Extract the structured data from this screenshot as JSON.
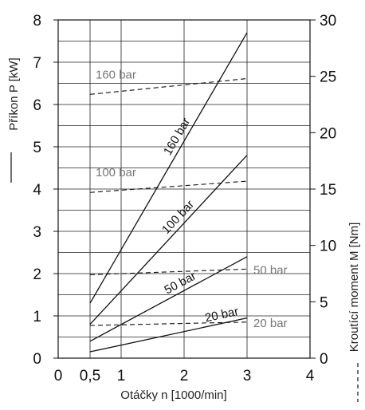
{
  "chart_data": {
    "type": "line",
    "xlabel": "Otáčky n [1000/min]",
    "ylabel_left": "Příkon P [kW]",
    "ylabel_right": "Kroutící moment M [Nm]",
    "x_ticks": [
      "0",
      "0,5",
      "1",
      "2",
      "3",
      "4"
    ],
    "x_tick_values": [
      0,
      0.5,
      1,
      2,
      3,
      4
    ],
    "y_left_ticks": [
      "0",
      "1",
      "2",
      "3",
      "4",
      "5",
      "6",
      "7",
      "8"
    ],
    "y_right_ticks": [
      "0",
      "5",
      "10",
      "15",
      "20",
      "25",
      "30"
    ],
    "xlim": [
      0,
      4
    ],
    "ylim_left": [
      0,
      8
    ],
    "ylim_right": [
      0,
      30
    ],
    "x_scale": "non-uniform (0 to 0.5 compressed)",
    "grid": true,
    "series_power": [
      {
        "name": "160 bar",
        "axis": "left",
        "style": "solid",
        "x": [
          0.5,
          3
        ],
        "y": [
          1.3,
          7.7
        ]
      },
      {
        "name": "100 bar",
        "axis": "left",
        "style": "solid",
        "x": [
          0.5,
          3
        ],
        "y": [
          0.8,
          4.8
        ]
      },
      {
        "name": "50 bar",
        "axis": "left",
        "style": "solid",
        "x": [
          0.5,
          3
        ],
        "y": [
          0.4,
          2.4
        ]
      },
      {
        "name": "20 bar",
        "axis": "left",
        "style": "solid",
        "x": [
          0.5,
          3
        ],
        "y": [
          0.15,
          0.95
        ]
      }
    ],
    "series_torque": [
      {
        "name": "160 bar",
        "axis": "right",
        "style": "dashed",
        "x": [
          0.5,
          3
        ],
        "y": [
          23.4,
          24.8
        ]
      },
      {
        "name": "100 bar",
        "axis": "right",
        "style": "dashed",
        "x": [
          0.5,
          3
        ],
        "y": [
          14.7,
          15.7
        ]
      },
      {
        "name": "50 bar",
        "axis": "right",
        "style": "dashed",
        "x": [
          0.5,
          3
        ],
        "y": [
          7.4,
          7.9
        ]
      },
      {
        "name": "20 bar",
        "axis": "right",
        "style": "dashed",
        "x": [
          0.5,
          3
        ],
        "y": [
          2.9,
          3.2
        ]
      }
    ],
    "legend_solid_symbol": "—",
    "legend_dashed_symbol": "- - -"
  }
}
